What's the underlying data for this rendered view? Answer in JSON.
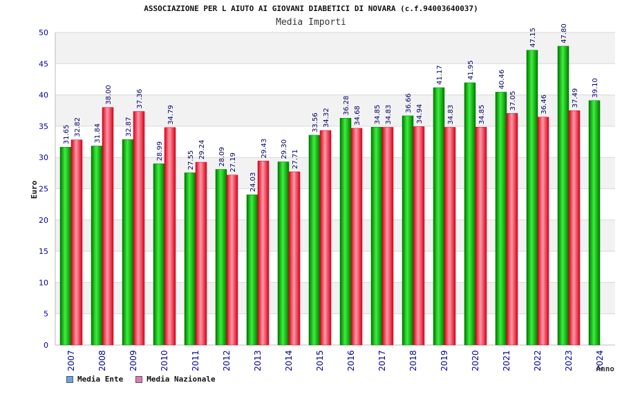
{
  "colors": {
    "ente_swatch": "#6aa4e8",
    "naz_swatch": "#e07ab0",
    "ente_bar_light": "#3cf03c",
    "ente_bar_dark": "#007800",
    "naz_bar_light": "#ff9aa8",
    "naz_bar_dark": "#d80018",
    "axis_text": "#00009a",
    "label_text": "#00006a"
  },
  "chart_data": {
    "type": "bar",
    "title": "ASSOCIAZIONE PER L AIUTO AI GIOVANI DIABETICI DI NOVARA (c.f.94003640037)",
    "subtitle": "Media Importi",
    "xlabel": "Anno",
    "ylabel": "Euro",
    "ylim": [
      0,
      50
    ],
    "yticks": [
      "0",
      "5",
      "10",
      "15",
      "20",
      "25",
      "30",
      "35",
      "40",
      "45",
      "50"
    ],
    "grid": true,
    "legend_position": "bottom-left",
    "categories": [
      "2007",
      "2008",
      "2009",
      "2010",
      "2011",
      "2012",
      "2013",
      "2014",
      "2015",
      "2016",
      "2017",
      "2018",
      "2019",
      "2020",
      "2021",
      "2022",
      "2023",
      "2024"
    ],
    "series": [
      {
        "name": "Media Ente",
        "values": [
          31.65,
          31.84,
          32.87,
          28.99,
          27.55,
          28.09,
          24.03,
          29.3,
          33.56,
          36.28,
          34.85,
          36.66,
          41.17,
          41.95,
          40.46,
          47.15,
          47.8,
          39.1
        ],
        "labels": [
          "31.65",
          "31.84",
          "32.87",
          "28.99",
          "27.55",
          "28.09",
          "24.03",
          "29.30",
          "33.56",
          "36.28",
          "34.85",
          "36.66",
          "41.17",
          "41.95",
          "40.46",
          "47.15",
          "47.80",
          "39.10"
        ]
      },
      {
        "name": "Media Nazionale",
        "values": [
          32.82,
          38.0,
          37.36,
          34.79,
          29.24,
          27.19,
          29.43,
          27.71,
          34.32,
          34.68,
          34.83,
          34.94,
          34.83,
          34.85,
          37.05,
          36.46,
          37.49,
          null
        ],
        "labels": [
          "32.82",
          "38.00",
          "37.36",
          "34.79",
          "29.24",
          "27.19",
          "29.43",
          "27.71",
          "34.32",
          "34.68",
          "34.83",
          "34.94",
          "34.83",
          "34.85",
          "37.05",
          "36.46",
          "37.49",
          ""
        ]
      }
    ]
  }
}
